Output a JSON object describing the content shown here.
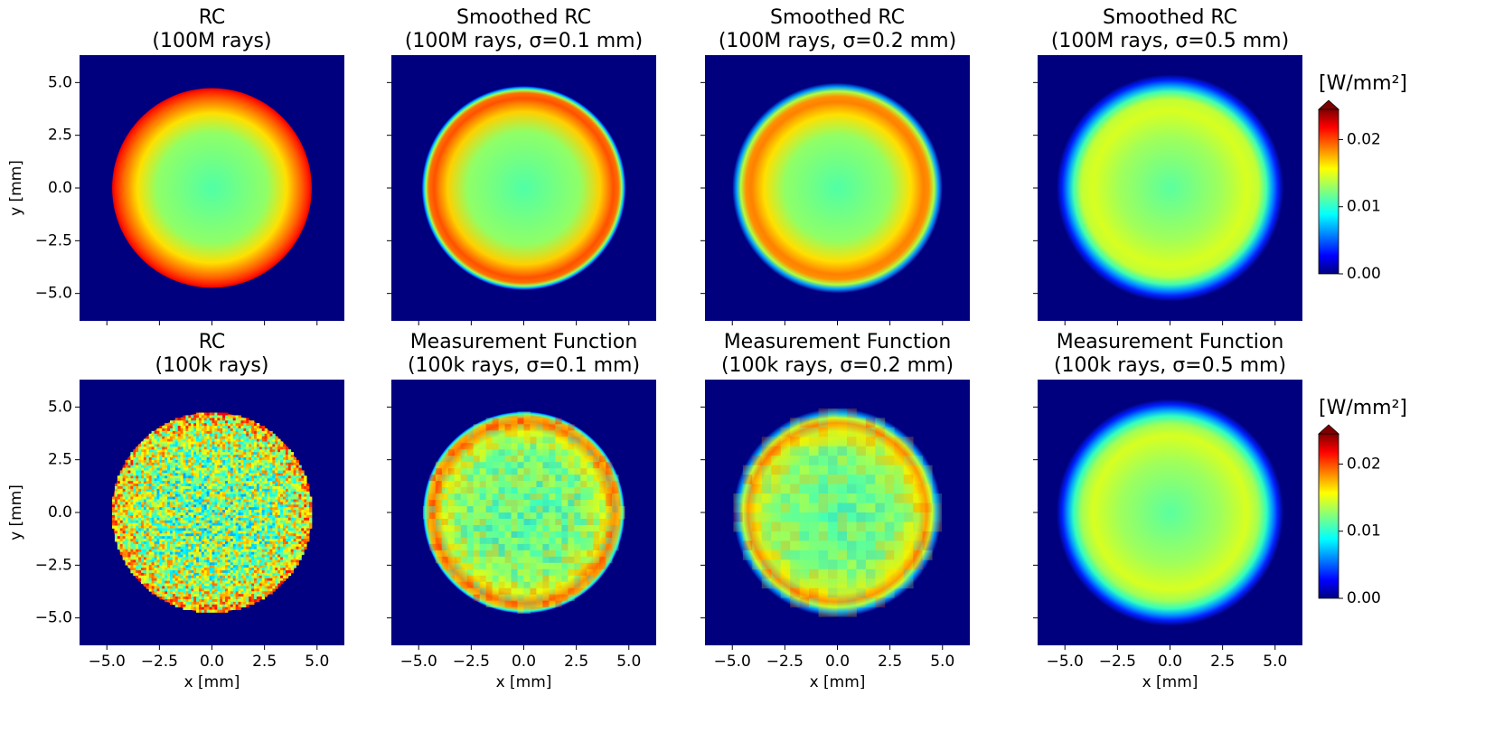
{
  "chart_data": [
    {
      "type": "heatmap",
      "title": [
        "RC",
        "(100M rays)"
      ],
      "ylabel": "y [mm]",
      "xlim": [
        -6.3,
        6.3
      ],
      "ylim": [
        -6.3,
        6.3
      ],
      "xticks": [
        -5,
        -2.5,
        0,
        2.5,
        5
      ],
      "yticks": [
        {
          "value": -5,
          "label": "−5.0"
        },
        {
          "value": -2.5,
          "label": "−2.5"
        },
        {
          "value": 0,
          "label": "0.0"
        },
        2.5,
        {
          "value": 5,
          "label": "5.0"
        }
      ],
      "show_xtick_labels": false,
      "show_ytick_labels": true,
      "colormap": "jet"
    },
    {
      "type": "heatmap",
      "title": [
        "Smoothed RC",
        "(100M rays, σ=0.1 mm)"
      ],
      "xlim": [
        -6.3,
        6.3
      ],
      "ylim": [
        -6.3,
        6.3
      ],
      "xticks": [
        -5,
        -2.5,
        0,
        2.5,
        5
      ],
      "yticks": [
        -5,
        -2.5,
        0,
        2.5,
        5
      ],
      "show_xtick_labels": false,
      "show_ytick_labels": false,
      "colormap": "jet"
    },
    {
      "type": "heatmap",
      "title": [
        "Smoothed RC",
        "(100M rays, σ=0.2 mm)"
      ],
      "xlim": [
        -6.3,
        6.3
      ],
      "ylim": [
        -6.3,
        6.3
      ],
      "xticks": [
        -5,
        -2.5,
        0,
        2.5,
        5
      ],
      "yticks": [
        -5,
        -2.5,
        0,
        2.5,
        5
      ],
      "show_xtick_labels": false,
      "show_ytick_labels": false,
      "colormap": "jet"
    },
    {
      "type": "heatmap",
      "title": [
        "Smoothed RC",
        "(100M rays, σ=0.5 mm)"
      ],
      "xlim": [
        -6.3,
        6.3
      ],
      "ylim": [
        -6.3,
        6.3
      ],
      "xticks": [
        -5,
        -2.5,
        0,
        2.5,
        5
      ],
      "yticks": [
        -5,
        -2.5,
        0,
        2.5,
        5
      ],
      "show_xtick_labels": false,
      "show_ytick_labels": false,
      "colormap": "jet"
    },
    {
      "type": "heatmap",
      "title": [
        "RC",
        "(100k rays)"
      ],
      "xlabel": "x [mm]",
      "ylabel": "y [mm]",
      "xlim": [
        -6.3,
        6.3
      ],
      "ylim": [
        -6.3,
        6.3
      ],
      "xticks": [
        {
          "value": -5,
          "label": "−5.0"
        },
        {
          "value": -2.5,
          "label": "−2.5"
        },
        {
          "value": 0,
          "label": "0.0"
        },
        2.5,
        {
          "value": 5,
          "label": "5.0"
        }
      ],
      "yticks": [
        {
          "value": -5,
          "label": "−5.0"
        },
        {
          "value": -2.5,
          "label": "−2.5"
        },
        {
          "value": 0,
          "label": "0.0"
        },
        2.5,
        {
          "value": 5,
          "label": "5.0"
        }
      ],
      "show_xtick_labels": true,
      "show_ytick_labels": true,
      "colormap": "jet"
    },
    {
      "type": "heatmap",
      "title": [
        "Measurement Function",
        "(100k rays, σ=0.1 mm)"
      ],
      "xlabel": "x [mm]",
      "xlim": [
        -6.3,
        6.3
      ],
      "ylim": [
        -6.3,
        6.3
      ],
      "xticks": [
        {
          "value": -5,
          "label": "−5.0"
        },
        {
          "value": -2.5,
          "label": "−2.5"
        },
        {
          "value": 0,
          "label": "0.0"
        },
        2.5,
        {
          "value": 5,
          "label": "5.0"
        }
      ],
      "yticks": [
        -5,
        -2.5,
        0,
        2.5,
        5
      ],
      "show_xtick_labels": true,
      "show_ytick_labels": false,
      "colormap": "jet"
    },
    {
      "type": "heatmap",
      "title": [
        "Measurement Function",
        "(100k rays, σ=0.2 mm)"
      ],
      "xlabel": "x [mm]",
      "xlim": [
        -6.3,
        6.3
      ],
      "ylim": [
        -6.3,
        6.3
      ],
      "xticks": [
        {
          "value": -5,
          "label": "−5.0"
        },
        {
          "value": -2.5,
          "label": "−2.5"
        },
        {
          "value": 0,
          "label": "0.0"
        },
        2.5,
        {
          "value": 5,
          "label": "5.0"
        }
      ],
      "yticks": [
        -5,
        -2.5,
        0,
        2.5,
        5
      ],
      "show_xtick_labels": true,
      "show_ytick_labels": false,
      "colormap": "jet"
    },
    {
      "type": "heatmap",
      "title": [
        "Measurement Function",
        "(100k rays, σ=0.5 mm)"
      ],
      "xlabel": "x [mm]",
      "xlim": [
        -6.3,
        6.3
      ],
      "ylim": [
        -6.3,
        6.3
      ],
      "xticks": [
        {
          "value": -5,
          "label": "−5.0"
        },
        {
          "value": -2.5,
          "label": "−2.5"
        },
        {
          "value": 0,
          "label": "0.0"
        },
        2.5,
        {
          "value": 5,
          "label": "5.0"
        }
      ],
      "yticks": [
        -5,
        -2.5,
        0,
        2.5,
        5
      ],
      "show_xtick_labels": true,
      "show_ytick_labels": false,
      "colormap": "jet"
    },
    {
      "type": "colorbar",
      "label": "[W/mm²]",
      "ylim": [
        0,
        0.0245
      ],
      "yticks": [
        {
          "value": 0,
          "label": "0.00"
        },
        0.01,
        0.02
      ],
      "extend": "max",
      "colormap": "jet"
    },
    {
      "type": "colorbar",
      "label": "[W/mm²]",
      "ylim": [
        0,
        0.0245
      ],
      "yticks": [
        {
          "value": 0,
          "label": "0.00"
        },
        0.01,
        0.02
      ],
      "extend": "max",
      "colormap": "jet"
    }
  ]
}
